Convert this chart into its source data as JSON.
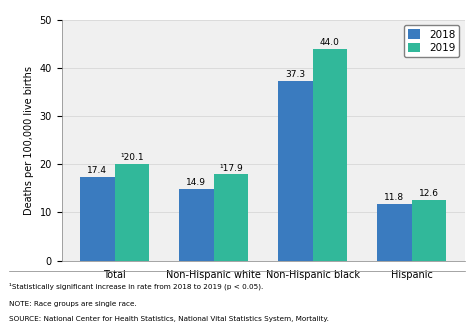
{
  "categories": [
    "Total",
    "Non-Hispanic white",
    "Non-Hispanic black",
    "Hispanic"
  ],
  "values_2018": [
    17.4,
    14.9,
    37.3,
    11.8
  ],
  "values_2019": [
    20.1,
    17.9,
    44.0,
    12.6
  ],
  "labels_2018": [
    "17.4",
    "14.9",
    "37.3",
    "11.8"
  ],
  "labels_2019": [
    "¹20.1",
    "¹17.9",
    "44.0",
    "12.6"
  ],
  "color_2018": "#3a7bbf",
  "color_2019": "#31b89a",
  "ylabel": "Deaths per 100,000 live births",
  "ylim": [
    0,
    50
  ],
  "yticks": [
    0,
    10,
    20,
    30,
    40,
    50
  ],
  "legend_labels": [
    "2018",
    "2019"
  ],
  "bar_width": 0.35,
  "footnote1": "¹Statistically significant increase in rate from 2018 to 2019 (p < 0.05).",
  "footnote2": "NOTE: Race groups are single race.",
  "footnote3": "SOURCE: National Center for Health Statistics, National Vital Statistics System, Mortality.",
  "footnote_fontsize": 5.2,
  "label_fontsize": 6.5,
  "tick_fontsize": 7,
  "legend_fontsize": 7.5,
  "bg_color": "#f0f0f0"
}
